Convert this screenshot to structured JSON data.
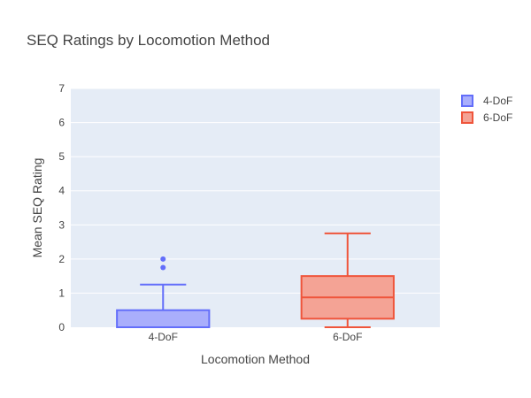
{
  "chart_data": {
    "type": "box",
    "title": "SEQ Ratings by Locomotion Method",
    "xlabel": "Locomotion Method",
    "ylabel": "Mean SEQ Rating",
    "categories": [
      "4-DoF",
      "6-DoF"
    ],
    "ylim": [
      0,
      7
    ],
    "yticks": [
      0,
      1,
      2,
      3,
      4,
      5,
      6,
      7
    ],
    "grid": true,
    "legend_position": "top-right",
    "series": [
      {
        "name": "4-DoF",
        "category": "4-DoF",
        "color": "#636efa",
        "fill": "#a9aefc",
        "q1": 0,
        "median": 0,
        "q3": 0.5,
        "lower_whisker": 0,
        "upper_whisker": 1.25,
        "outliers": [
          1.75,
          2.0
        ]
      },
      {
        "name": "6-DoF",
        "category": "6-DoF",
        "color": "#ef553b",
        "fill": "#f4a395",
        "q1": 0.25,
        "median": 0.875,
        "q3": 1.5,
        "lower_whisker": 0,
        "upper_whisker": 2.75,
        "outliers": []
      }
    ]
  }
}
